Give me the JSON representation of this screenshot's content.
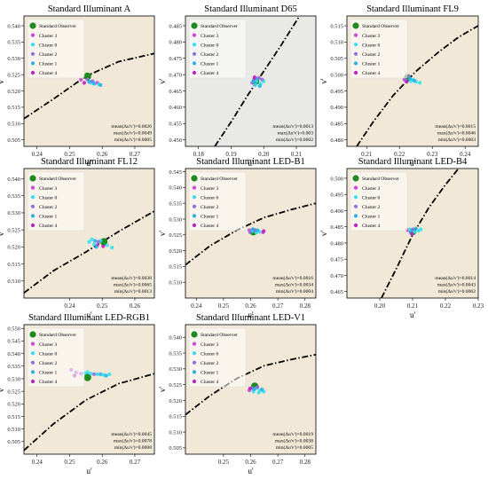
{
  "legend_labels": [
    "Standard Observer",
    "Cluster 3",
    "Cluster 0",
    "Cluster 2",
    "Cluster 1",
    "Cluster 4"
  ],
  "colors": {
    "standard_observer": "#1f8a1f",
    "cluster_3": "#cc44dd",
    "cluster_0": "#33e0f0",
    "cluster_2": "#8a70e0",
    "cluster_1": "#2ab0e8",
    "cluster_4": "#c020c0",
    "locus": "#000000",
    "background_default": "#f1e8d8",
    "background_d65": "#e9e9e6"
  },
  "chart_data": [
    {
      "type": "scatter",
      "title": "Standard Illuminant A",
      "xlabel": "u'",
      "ylabel": "v'",
      "xlim": [
        0.236,
        0.276
      ],
      "ylim": [
        0.503,
        0.543
      ],
      "xticks": [
        "0.24",
        "0.25",
        "0.26",
        "0.27"
      ],
      "yticks": [
        "0.505",
        "0.510",
        "0.515",
        "0.520",
        "0.525",
        "0.530",
        "0.535",
        "0.540"
      ],
      "locus": [
        [
          0.236,
          0.5115
        ],
        [
          0.245,
          0.5175
        ],
        [
          0.255,
          0.5245
        ],
        [
          0.265,
          0.529
        ],
        [
          0.276,
          0.5315
        ]
      ],
      "observer": [
        0.2555,
        0.5245
      ],
      "series": [
        {
          "cluster": 3,
          "points": [
            [
              0.2535,
              0.5235
            ],
            [
              0.2585,
              0.5225
            ]
          ]
        },
        {
          "cluster": 0,
          "points": [
            [
              0.256,
              0.523
            ],
            [
              0.2575,
              0.5225
            ],
            [
              0.259,
              0.522
            ],
            [
              0.2565,
              0.5225
            ]
          ]
        },
        {
          "cluster": 2,
          "points": [
            [
              0.2555,
              0.5235
            ],
            [
              0.257,
              0.523
            ]
          ]
        },
        {
          "cluster": 1,
          "points": [
            [
              0.2575,
              0.5222
            ],
            [
              0.2595,
              0.5218
            ],
            [
              0.256,
              0.5228
            ]
          ]
        },
        {
          "cluster": 4,
          "points": [
            [
              0.2545,
              0.5225
            ]
          ]
        }
      ],
      "stats": [
        "mean(Δu'v')=0.0026",
        "max(Δu'v')=0.0049",
        "min(Δu'v')=0.0005"
      ]
    },
    {
      "type": "scatter",
      "title": "Standard Illuminant D65",
      "xlabel": "u'",
      "ylabel": "v'",
      "xlim": [
        0.176,
        0.216
      ],
      "ylim": [
        0.448,
        0.488
      ],
      "xticks": [
        "0.18",
        "0.19",
        "0.20",
        "0.21"
      ],
      "yticks": [
        "0.450",
        "0.455",
        "0.460",
        "0.465",
        "0.470",
        "0.475",
        "0.480",
        "0.485"
      ],
      "locus": [
        [
          0.185,
          0.448
        ],
        [
          0.19,
          0.4555
        ],
        [
          0.195,
          0.4635
        ],
        [
          0.2,
          0.471
        ],
        [
          0.205,
          0.4785
        ],
        [
          0.211,
          0.488
        ]
      ],
      "observer": [
        0.1975,
        0.468
      ],
      "series": [
        {
          "cluster": 3,
          "points": [
            [
              0.1965,
              0.4675
            ],
            [
              0.1985,
              0.469
            ]
          ]
        },
        {
          "cluster": 0,
          "points": [
            [
              0.1978,
              0.468
            ],
            [
              0.199,
              0.4672
            ],
            [
              0.2,
              0.468
            ],
            [
              0.1975,
              0.4668
            ]
          ]
        },
        {
          "cluster": 2,
          "points": [
            [
              0.197,
              0.4685
            ],
            [
              0.1995,
              0.4685
            ]
          ]
        },
        {
          "cluster": 1,
          "points": [
            [
              0.198,
              0.4688
            ],
            [
              0.1988,
              0.4665
            ],
            [
              0.1968,
              0.4678
            ]
          ]
        },
        {
          "cluster": 4,
          "points": [
            [
              0.1972,
              0.4692
            ]
          ]
        }
      ],
      "stats": [
        "mean(Δu'v')=0.0013",
        "max(Δu'v')=0.003",
        "min(Δu'v')=0.0002"
      ]
    },
    {
      "type": "scatter",
      "title": "Standard Illuminant FL9",
      "xlabel": "u'",
      "ylabel": "v'",
      "xlim": [
        0.204,
        0.244
      ],
      "ylim": [
        0.478,
        0.518
      ],
      "xticks": [
        "0.21",
        "0.22",
        "0.23",
        "0.24"
      ],
      "yticks": [
        "0.480",
        "0.485",
        "0.490",
        "0.495",
        "0.500",
        "0.505",
        "0.510",
        "0.515"
      ],
      "locus": [
        [
          0.207,
          0.478
        ],
        [
          0.212,
          0.4855
        ],
        [
          0.218,
          0.4935
        ],
        [
          0.225,
          0.501
        ],
        [
          0.232,
          0.507
        ],
        [
          0.238,
          0.5115
        ],
        [
          0.244,
          0.515
        ]
      ],
      "observer": [
        0.2225,
        0.499
      ],
      "series": [
        {
          "cluster": 3,
          "points": [
            [
              0.2215,
              0.4985
            ]
          ]
        },
        {
          "cluster": 0,
          "points": [
            [
              0.2235,
              0.498
            ],
            [
              0.225,
              0.4978
            ],
            [
              0.2262,
              0.4975
            ],
            [
              0.224,
              0.4985
            ]
          ]
        },
        {
          "cluster": 2,
          "points": [
            [
              0.2228,
              0.4995
            ],
            [
              0.222,
              0.4982
            ]
          ]
        },
        {
          "cluster": 1,
          "points": [
            [
              0.2232,
              0.4988
            ],
            [
              0.2245,
              0.4982
            ]
          ]
        },
        {
          "cluster": 4,
          "points": [
            [
              0.2222,
              0.4978
            ]
          ]
        }
      ],
      "stats": [
        "mean(Δu'v')=0.0015",
        "max(Δu'v')=0.0046",
        "min(Δu'v')=0.0003"
      ]
    },
    {
      "type": "scatter",
      "title": "Standard Illuminant FL12",
      "xlabel": "u'",
      "ylabel": "v'",
      "xlim": [
        0.226,
        0.266
      ],
      "ylim": [
        0.505,
        0.543
      ],
      "xticks": [
        "0.24",
        "0.25",
        "0.26"
      ],
      "yticks": [
        "0.510",
        "0.515",
        "0.520",
        "0.525",
        "0.530",
        "0.535",
        "0.540"
      ],
      "locus": [
        [
          0.226,
          0.5065
        ],
        [
          0.235,
          0.513
        ],
        [
          0.245,
          0.5185
        ],
        [
          0.255,
          0.5245
        ],
        [
          0.266,
          0.5305
        ]
      ],
      "observer": [
        0.2505,
        0.5215
      ],
      "series": [
        {
          "cluster": 3,
          "points": [
            [
              0.2485,
              0.5205
            ]
          ]
        },
        {
          "cluster": 0,
          "points": [
            [
              0.246,
              0.5215
            ],
            [
              0.2475,
              0.5208
            ],
            [
              0.2495,
              0.5218
            ],
            [
              0.2515,
              0.5205
            ],
            [
              0.253,
              0.5198
            ],
            [
              0.2468,
              0.5222
            ]
          ]
        },
        {
          "cluster": 2,
          "points": [
            [
              0.2488,
              0.5215
            ]
          ]
        },
        {
          "cluster": 1,
          "points": [
            [
              0.2478,
              0.5218
            ],
            [
              0.2482,
              0.52
            ]
          ]
        },
        {
          "cluster": 4,
          "points": [
            [
              0.2503,
              0.5202
            ]
          ]
        }
      ],
      "stats": [
        "mean(Δu'v')=0.0038",
        "max(Δu'v')=0.0065",
        "min(Δu'v')=0.0013"
      ]
    },
    {
      "type": "scatter",
      "title": "Standard Illuminant LED-B1",
      "xlabel": "u'",
      "ylabel": "v'",
      "xlim": [
        0.236,
        0.284
      ],
      "ylim": [
        0.505,
        0.546
      ],
      "xticks": [
        "0.24",
        "0.25",
        "0.26",
        "0.27",
        "0.28"
      ],
      "yticks": [
        "0.510",
        "0.515",
        "0.520",
        "0.525",
        "0.530",
        "0.535",
        "0.540",
        "0.545"
      ],
      "locus": [
        [
          0.236,
          0.5155
        ],
        [
          0.245,
          0.5215
        ],
        [
          0.255,
          0.5265
        ],
        [
          0.265,
          0.5305
        ],
        [
          0.275,
          0.533
        ],
        [
          0.284,
          0.535
        ]
      ],
      "observer": [
        0.261,
        0.526
      ],
      "series": [
        {
          "cluster": 3,
          "points": [
            [
              0.2595,
              0.5265
            ],
            [
              0.2645,
              0.5258
            ]
          ]
        },
        {
          "cluster": 0,
          "points": [
            [
              0.2605,
              0.5262
            ],
            [
              0.262,
              0.5258
            ],
            [
              0.2632,
              0.526
            ]
          ]
        },
        {
          "cluster": 2,
          "points": [
            [
              0.2598,
              0.5258
            ],
            [
              0.2615,
              0.5265
            ]
          ]
        },
        {
          "cluster": 1,
          "points": [
            [
              0.2608,
              0.5268
            ],
            [
              0.2625,
              0.5265
            ]
          ]
        },
        {
          "cluster": 4,
          "points": [
            [
              0.2648,
              0.5262
            ]
          ]
        }
      ],
      "stats": [
        "mean(Δu'v')=0.0016",
        "max(Δu'v')=0.0034",
        "min(Δu'v')=0.0004"
      ]
    },
    {
      "type": "scatter",
      "title": "Standard Illuminant LED-B4",
      "xlabel": "u'",
      "ylabel": "v'",
      "xlim": [
        0.19,
        0.23
      ],
      "ylim": [
        0.463,
        0.503
      ],
      "xticks": [
        "0.20",
        "0.21",
        "0.22",
        "0.23"
      ],
      "yticks": [
        "0.465",
        "0.470",
        "0.475",
        "0.480",
        "0.485",
        "0.490",
        "0.495",
        "0.500"
      ],
      "locus": [
        [
          0.2005,
          0.463
        ],
        [
          0.205,
          0.472
        ],
        [
          0.21,
          0.4825
        ],
        [
          0.215,
          0.491
        ],
        [
          0.22,
          0.498
        ],
        [
          0.224,
          0.503
        ]
      ],
      "observer": [
        0.21,
        0.4835
      ],
      "series": [
        {
          "cluster": 3,
          "points": [
            [
              0.2085,
              0.484
            ]
          ]
        },
        {
          "cluster": 0,
          "points": [
            [
              0.2092,
              0.4842
            ],
            [
              0.2105,
              0.4835
            ],
            [
              0.2118,
              0.4838
            ],
            [
              0.2125,
              0.4842
            ]
          ]
        },
        {
          "cluster": 2,
          "points": [
            [
              0.2102,
              0.4842
            ]
          ]
        },
        {
          "cluster": 1,
          "points": [
            [
              0.2095,
              0.4832
            ],
            [
              0.211,
              0.4845
            ]
          ]
        },
        {
          "cluster": 4,
          "points": [
            [
              0.2098,
              0.4828
            ]
          ]
        }
      ],
      "stats": [
        "mean(Δu'v')=0.0014",
        "max(Δu'v')=0.0043",
        "min(Δu'v')=0.0002"
      ]
    },
    {
      "type": "scatter",
      "title": "Standard Illuminant LED-RGB1",
      "xlabel": "u'",
      "ylabel": "v'",
      "xlim": [
        0.236,
        0.276
      ],
      "ylim": [
        0.5,
        0.5515
      ],
      "xticks": [
        "0.24",
        "0.25",
        "0.26",
        "0.27"
      ],
      "yticks": [
        "0.505",
        "0.510",
        "0.515",
        "0.520",
        "0.525",
        "0.530",
        "0.535",
        "0.540",
        "0.545",
        "0.550"
      ],
      "locus": [
        [
          0.236,
          0.5015
        ],
        [
          0.245,
          0.512
        ],
        [
          0.255,
          0.5215
        ],
        [
          0.265,
          0.528
        ],
        [
          0.276,
          0.532
        ]
      ],
      "observer": [
        0.2555,
        0.5305
      ],
      "series": [
        {
          "cluster": 3,
          "points": [
            [
              0.2535,
              0.532
            ],
            [
              0.2505,
              0.5335
            ]
          ]
        },
        {
          "cluster": 0,
          "points": [
            [
              0.2545,
              0.5322
            ],
            [
              0.2565,
              0.532
            ],
            [
              0.2585,
              0.5318
            ],
            [
              0.2605,
              0.5315
            ],
            [
              0.2622,
              0.5318
            ],
            [
              0.2555,
              0.5326
            ]
          ]
        },
        {
          "cluster": 2,
          "points": [
            [
              0.252,
              0.5325
            ],
            [
              0.2575,
              0.5318
            ]
          ]
        },
        {
          "cluster": 1,
          "points": [
            [
              0.2595,
              0.5318
            ],
            [
              0.2612,
              0.5312
            ]
          ]
        },
        {
          "cluster": 4,
          "points": [
            [
              0.2515,
              0.5312
            ]
          ]
        }
      ],
      "stats": [
        "mean(Δu'v')=0.0045",
        "max(Δu'v')=0.0078",
        "min(Δu'v')=0.0008"
      ]
    },
    {
      "type": "scatter",
      "title": "Standard Illuminant LED-V1",
      "xlabel": "u'",
      "ylabel": "v'",
      "xlim": [
        0.236,
        0.284
      ],
      "ylim": [
        0.503,
        0.544
      ],
      "xticks": [
        "0.25",
        "0.26",
        "0.27",
        "0.28"
      ],
      "yticks": [
        "0.505",
        "0.510",
        "0.515",
        "0.520",
        "0.525",
        "0.530",
        "0.535",
        "0.540"
      ],
      "locus": [
        [
          0.236,
          0.5155
        ],
        [
          0.245,
          0.5215
        ],
        [
          0.255,
          0.527
        ],
        [
          0.265,
          0.531
        ],
        [
          0.275,
          0.533
        ],
        [
          0.284,
          0.5345
        ]
      ],
      "observer": [
        0.2615,
        0.5245
      ],
      "series": [
        {
          "cluster": 3,
          "points": [
            [
              0.2595,
              0.5232
            ]
          ]
        },
        {
          "cluster": 0,
          "points": [
            [
              0.262,
              0.5238
            ],
            [
              0.2635,
              0.5232
            ],
            [
              0.2648,
              0.5228
            ],
            [
              0.261,
              0.5228
            ],
            [
              0.263,
              0.5225
            ]
          ]
        },
        {
          "cluster": 2,
          "points": [
            [
              0.2605,
              0.524
            ],
            [
              0.2625,
              0.5242
            ]
          ]
        },
        {
          "cluster": 1,
          "points": [
            [
              0.2612,
              0.5235
            ],
            [
              0.2642,
              0.5235
            ]
          ]
        },
        {
          "cluster": 4,
          "points": [
            [
              0.2598,
              0.5238
            ]
          ]
        }
      ],
      "stats": [
        "mean(Δu'v')=0.0019",
        "max(Δu'v')=0.0038",
        "min(Δu'v')=0.0005"
      ]
    }
  ]
}
